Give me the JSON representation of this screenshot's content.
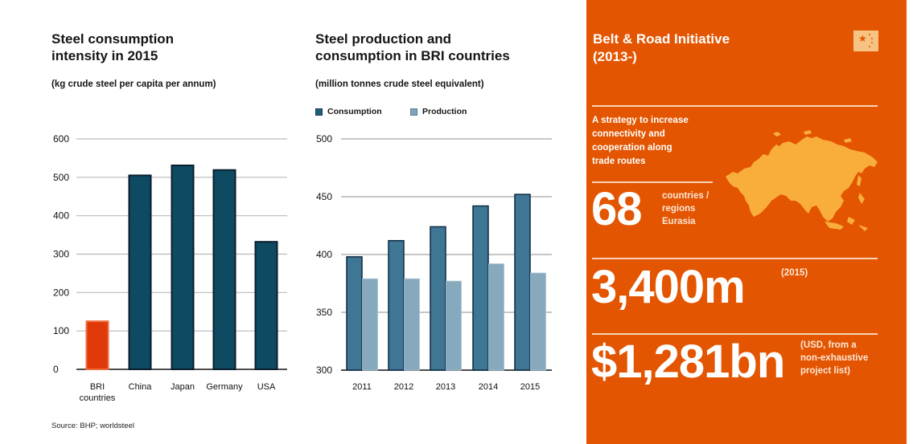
{
  "left_chart": {
    "title_line1": "Steel consumption",
    "title_line2": "intensity in 2015",
    "subtitle": "(kg crude steel per capita per annum)",
    "source": "Source:  BHP; worldsteel"
  },
  "right_chart": {
    "title_line1": "Steel production and",
    "title_line2": "consumption in BRI countries",
    "subtitle": "(million tonnes crude steel equivalent)",
    "legend": [
      {
        "label": "Consumption",
        "color": "#3f7694"
      },
      {
        "label": "Production",
        "color": "#87a9be"
      }
    ]
  },
  "chart_data": [
    {
      "type": "bar",
      "title": "Steel consumption intensity in 2015",
      "subtitle": "(kg crude steel per capita per annum)",
      "xlabel": "",
      "ylabel": "kg crude steel per capita per annum",
      "categories": [
        "BRI countries",
        "China",
        "Japan",
        "Germany",
        "USA"
      ],
      "category_lines": [
        [
          "BRI",
          "countries"
        ],
        [
          "China"
        ],
        [
          "Japan"
        ],
        [
          "Germany"
        ],
        [
          "USA"
        ]
      ],
      "values": [
        125,
        505,
        531,
        519,
        332
      ],
      "colors": [
        "#e03a0a",
        "#0f4a63",
        "#0f4a63",
        "#0f4a63",
        "#0f4a63"
      ],
      "ylim": [
        0,
        600
      ],
      "yticks": [
        0,
        100,
        200,
        300,
        400,
        500,
        600
      ],
      "grid": true,
      "legend": "none",
      "source": "Source:  BHP; worldsteel"
    },
    {
      "type": "bar",
      "title": "Steel production and consumption in BRI countries",
      "subtitle": "(million tonnes crude steel equivalent)",
      "xlabel": "",
      "ylabel": "million tonnes crude steel equivalent",
      "categories": [
        "2011",
        "2012",
        "2013",
        "2014",
        "2015"
      ],
      "series": [
        {
          "name": "Consumption",
          "values": [
            398,
            412,
            424,
            442,
            452
          ],
          "color": "#3f7694"
        },
        {
          "name": "Production",
          "values": [
            379,
            379,
            377,
            392,
            384
          ],
          "color": "#87a9be"
        }
      ],
      "ylim": [
        300,
        500
      ],
      "yticks": [
        300,
        350,
        400,
        450,
        500
      ],
      "grid": true,
      "legend": "top-left"
    }
  ],
  "panel": {
    "title_line1": "Belt & Road Initiative",
    "title_line2": "(2013-)",
    "flag_icon": "china-flag-icon",
    "description": [
      "A strategy to increase",
      "connectivity and",
      "cooperation along",
      "trade routes"
    ],
    "map_icon": "eurasia-map",
    "stats": [
      {
        "value": "68",
        "note": [
          "countries /",
          "regions",
          "Eurasia"
        ]
      },
      {
        "value": "3,400m",
        "note": [
          "(2015)"
        ]
      },
      {
        "value": "$1,281bn",
        "note": [
          "(USD, from a",
          "non-exhaustive",
          "project list)"
        ]
      }
    ],
    "background": "#e35500",
    "map_color": "#f9ae3b"
  }
}
